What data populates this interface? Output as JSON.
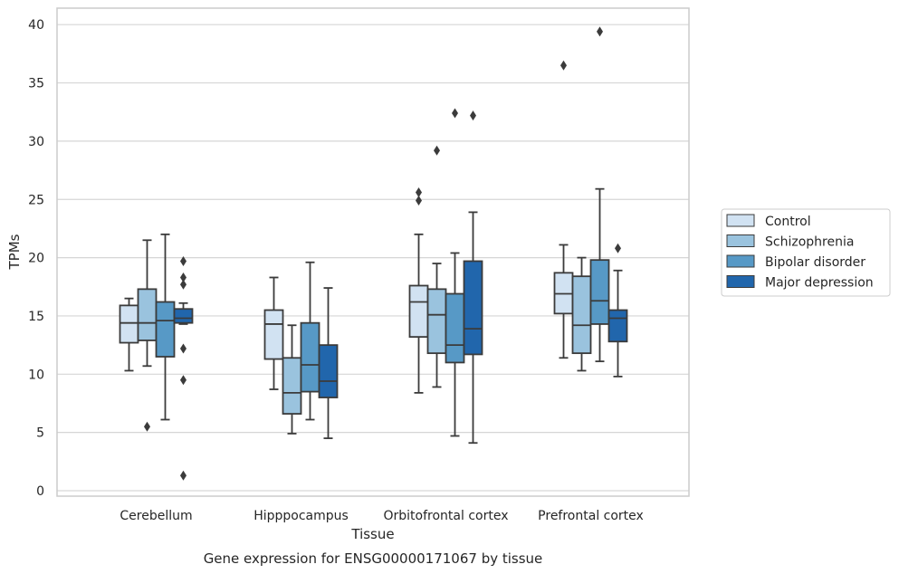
{
  "caption": "Gene expression for ENSG00000171067 by tissue",
  "chart_data": {
    "type": "box",
    "xlabel": "Tissue",
    "ylabel": "TPMs",
    "ylim": [
      -0.5,
      41.5
    ],
    "yticks": [
      0,
      5,
      10,
      15,
      20,
      25,
      30,
      35,
      40
    ],
    "grid": "horizontal",
    "legend_position": "right",
    "categories": [
      "Cerebellum",
      "Hipppocampus",
      "Orbitofrontal cortex",
      "Prefrontal cortex"
    ],
    "series": [
      {
        "name": "Control",
        "color": "#d1e2f2",
        "boxes": [
          {
            "low": 10.3,
            "q1": 12.7,
            "median": 14.4,
            "q3": 15.9,
            "high": 16.5,
            "outliers": []
          },
          {
            "low": 8.7,
            "q1": 11.3,
            "median": 14.3,
            "q3": 15.5,
            "high": 18.3,
            "outliers": []
          },
          {
            "low": 8.4,
            "q1": 13.2,
            "median": 16.2,
            "q3": 17.6,
            "high": 22.0,
            "outliers": [
              24.9,
              25.6
            ]
          },
          {
            "low": 11.4,
            "q1": 15.2,
            "median": 16.9,
            "q3": 18.7,
            "high": 21.1,
            "outliers": [
              36.5
            ]
          }
        ]
      },
      {
        "name": "Schizophrenia",
        "color": "#9ac3de",
        "boxes": [
          {
            "low": 10.7,
            "q1": 12.9,
            "median": 14.4,
            "q3": 17.3,
            "high": 21.5,
            "outliers": [
              5.5
            ]
          },
          {
            "low": 4.9,
            "q1": 6.6,
            "median": 8.4,
            "q3": 11.4,
            "high": 14.2,
            "outliers": []
          },
          {
            "low": 8.9,
            "q1": 11.8,
            "median": 15.1,
            "q3": 17.3,
            "high": 19.5,
            "outliers": [
              29.2
            ]
          },
          {
            "low": 10.3,
            "q1": 11.8,
            "median": 14.2,
            "q3": 18.4,
            "high": 20.0,
            "outliers": []
          }
        ]
      },
      {
        "name": "Bipolar disorder",
        "color": "#5799c6",
        "boxes": [
          {
            "low": 6.1,
            "q1": 11.5,
            "median": 14.6,
            "q3": 16.2,
            "high": 22.0,
            "outliers": []
          },
          {
            "low": 6.1,
            "q1": 8.5,
            "median": 10.8,
            "q3": 14.4,
            "high": 19.6,
            "outliers": []
          },
          {
            "low": 4.7,
            "q1": 11.0,
            "median": 12.5,
            "q3": 16.9,
            "high": 20.4,
            "outliers": [
              32.4
            ]
          },
          {
            "low": 11.1,
            "q1": 14.3,
            "median": 16.3,
            "q3": 19.8,
            "high": 25.9,
            "outliers": [
              39.4
            ]
          }
        ]
      },
      {
        "name": "Major depression",
        "color": "#2166ac",
        "boxes": [
          {
            "low": 14.3,
            "q1": 14.4,
            "median": 14.8,
            "q3": 15.6,
            "high": 16.1,
            "outliers": [
              19.7,
              18.3,
              17.7,
              12.2,
              9.5,
              1.3
            ]
          },
          {
            "low": 4.5,
            "q1": 8.0,
            "median": 9.4,
            "q3": 12.5,
            "high": 17.4,
            "outliers": []
          },
          {
            "low": 4.1,
            "q1": 11.7,
            "median": 13.9,
            "q3": 19.7,
            "high": 23.9,
            "outliers": [
              32.2
            ]
          },
          {
            "low": 9.8,
            "q1": 12.8,
            "median": 14.8,
            "q3": 15.5,
            "high": 18.9,
            "outliers": [
              20.8
            ]
          }
        ]
      }
    ]
  }
}
